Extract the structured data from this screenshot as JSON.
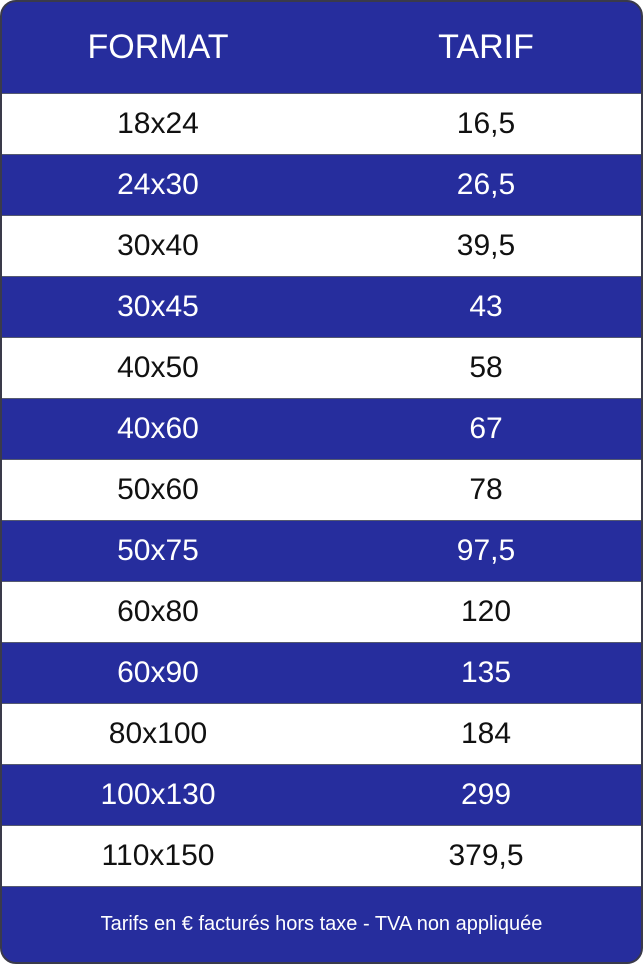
{
  "header": {
    "format": "FORMAT",
    "tarif": "TARIF"
  },
  "rows": [
    {
      "format": "18x24",
      "tarif": "16,5"
    },
    {
      "format": "24x30",
      "tarif": "26,5"
    },
    {
      "format": "30x40",
      "tarif": "39,5"
    },
    {
      "format": "30x45",
      "tarif": "43"
    },
    {
      "format": "40x50",
      "tarif": "58"
    },
    {
      "format": "40x60",
      "tarif": "67"
    },
    {
      "format": "50x60",
      "tarif": "78"
    },
    {
      "format": "50x75",
      "tarif": "97,5"
    },
    {
      "format": "60x80",
      "tarif": "120"
    },
    {
      "format": "60x90",
      "tarif": "135"
    },
    {
      "format": "80x100",
      "tarif": "184"
    },
    {
      "format": "100x130",
      "tarif": "299"
    },
    {
      "format": "110x150",
      "tarif": "379,5"
    }
  ],
  "footer": "Tarifs en € facturés hors taxe - TVA non appliquée",
  "colors": {
    "brand_blue": "#262d9d",
    "row_white": "#ffffff"
  }
}
